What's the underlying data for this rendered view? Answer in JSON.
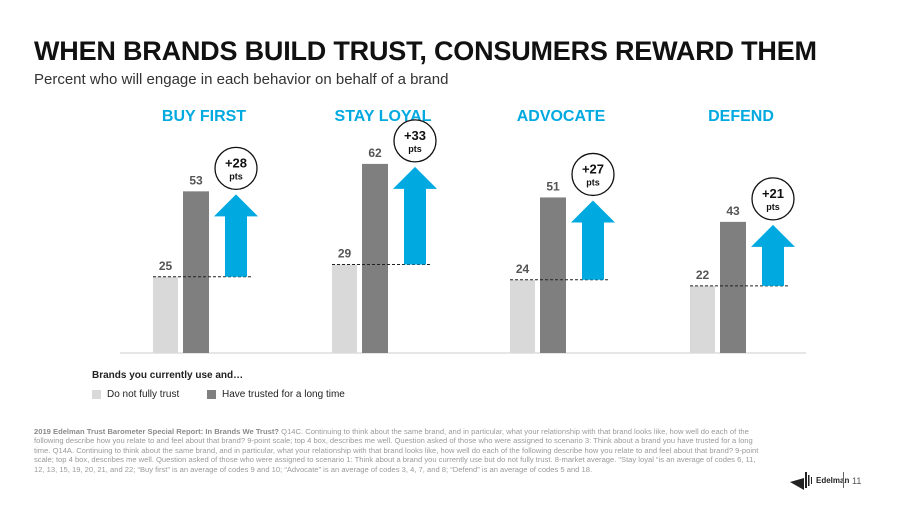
{
  "title": "WHEN BRANDS BUILD TRUST, CONSUMERS REWARD THEM",
  "subtitle": "Percent who will engage in each behavior on behalf of a brand",
  "chart_data": {
    "type": "bar",
    "categories": [
      "BUY FIRST",
      "STAY LOYAL",
      "ADVOCATE",
      "DEFEND"
    ],
    "series": [
      {
        "name": "Do not fully trust",
        "values": [
          25,
          29,
          24,
          22
        ],
        "color": "#d9d9d9"
      },
      {
        "name": "Have trusted for a long time",
        "values": [
          53,
          62,
          51,
          43
        ],
        "color": "#7f7f7f"
      }
    ],
    "differences": [
      "+28",
      "+33",
      "+27",
      "+21"
    ],
    "difference_unit": "pts",
    "legend_title": "Brands you currently use and…",
    "category_color": "#00a9e0",
    "arrow_color": "#00a9e0",
    "legend": "bottom-left"
  },
  "footnote_bold": "2019 Edelman Trust Barometer Special Report: In Brands We Trust?",
  "footnote": " Q14C. Continuing to think about the same brand, and in particular, what your relationship with that brand looks like, how well do each of the following describe how you relate to and feel about that brand? 9-point scale; top 4 box, describes me well. Question asked of those who were assigned to scenario 3: Think about a brand you have trusted for a long time. Q14A. Continuing to think about the same brand, and in particular, what your relationship with that brand looks like, how well do each of the following describe how you relate to and feel about that brand? 9-point scale; top 4 box, describes me well. Question asked of those who were assigned to scenario 1: Think about a brand you currently use but do not fully trust. 8-market average. “Stay loyal “is an average of codes 6, 11, 12, 13, 15, 19, 20, 21, and 22; “Buy first” is an average of codes 9 and 10; “Advocate” is an average of codes 3, 4, 7, and 8; “Defend” is an average of codes 5 and 18.",
  "logo": "Edelman",
  "page_number": "11"
}
